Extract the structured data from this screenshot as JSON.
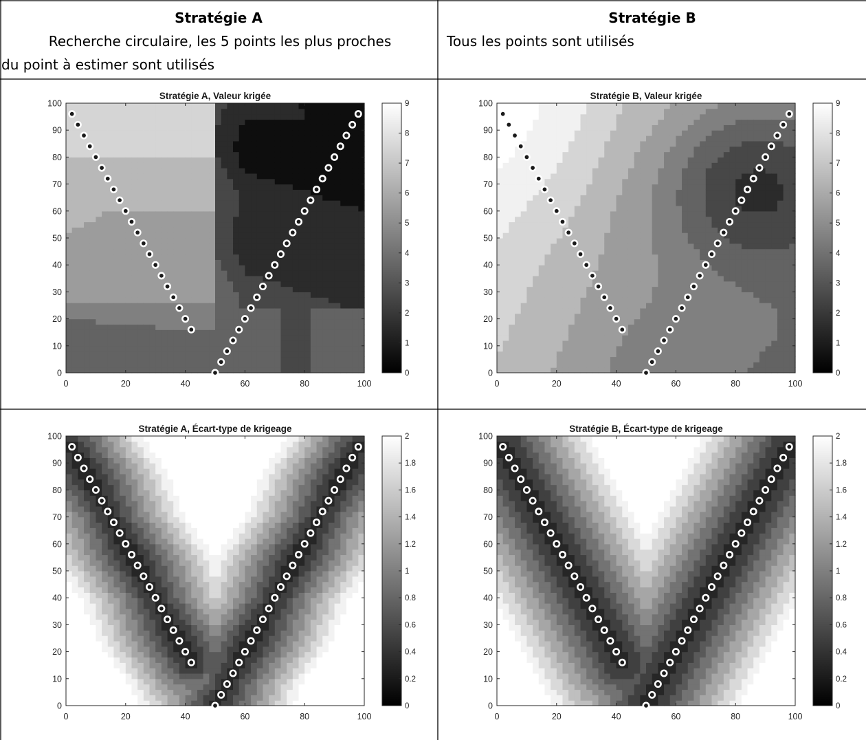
{
  "header": {
    "left": {
      "title": "Stratégie A",
      "desc_line1": "Recherche circulaire, les 5 points les plus proches",
      "desc_line2": "du point à estimer sont utilisés"
    },
    "right": {
      "title": "Stratégie B",
      "desc_line1": "Tous les points sont utilisés"
    }
  },
  "chart_data": [
    {
      "type": "heatmap",
      "title": "Stratégie A, Valeur krigée",
      "xlim": [
        0,
        100
      ],
      "ylim": [
        0,
        100
      ],
      "xticks": [
        0,
        20,
        40,
        60,
        80,
        100
      ],
      "yticks": [
        0,
        10,
        20,
        30,
        40,
        50,
        60,
        70,
        80,
        90,
        100
      ],
      "clim": [
        0,
        9
      ],
      "colorbar_ticks": [
        0,
        1,
        2,
        3,
        4,
        5,
        6,
        7,
        8,
        9
      ],
      "colormap": "gray",
      "search": "nearest-5",
      "sample_points": "V-shaped lines"
    },
    {
      "type": "heatmap",
      "title": "Stratégie B, Valeur krigée",
      "xlim": [
        0,
        100
      ],
      "ylim": [
        0,
        100
      ],
      "xticks": [
        0,
        20,
        40,
        60,
        80,
        100
      ],
      "yticks": [
        0,
        10,
        20,
        30,
        40,
        50,
        60,
        70,
        80,
        90,
        100
      ],
      "clim": [
        0,
        9
      ],
      "colorbar_ticks": [
        0,
        1,
        2,
        3,
        4,
        5,
        6,
        7,
        8,
        9
      ],
      "colormap": "gray",
      "search": "all",
      "sample_points": "V-shaped lines"
    },
    {
      "type": "heatmap",
      "title": "Stratégie A, Écart-type de krigeage",
      "xlim": [
        0,
        100
      ],
      "ylim": [
        0,
        100
      ],
      "xticks": [
        0,
        20,
        40,
        60,
        80,
        100
      ],
      "yticks": [
        0,
        10,
        20,
        30,
        40,
        50,
        60,
        70,
        80,
        90,
        100
      ],
      "clim": [
        0,
        2
      ],
      "colorbar_ticks": [
        0,
        0.2,
        0.4,
        0.6,
        0.8,
        1,
        1.2,
        1.4,
        1.6,
        1.8,
        2
      ],
      "colormap": "gray",
      "search": "nearest-5",
      "sample_points": "V-shaped lines"
    },
    {
      "type": "heatmap",
      "title": "Stratégie B, Écart-type de krigeage",
      "xlim": [
        0,
        100
      ],
      "ylim": [
        0,
        100
      ],
      "xticks": [
        0,
        20,
        40,
        60,
        80,
        100
      ],
      "yticks": [
        0,
        10,
        20,
        30,
        40,
        50,
        60,
        70,
        80,
        90,
        100
      ],
      "clim": [
        0,
        2
      ],
      "colorbar_ticks": [
        0,
        0.2,
        0.4,
        0.6,
        0.8,
        1,
        1.2,
        1.4,
        1.6,
        1.8,
        2
      ],
      "colormap": "gray",
      "search": "all",
      "sample_points": "V-shaped lines"
    }
  ],
  "sample_points": {
    "left_line": {
      "x_start": 2,
      "y_start": 96,
      "x_end": 42,
      "y_end": 16,
      "count": 21
    },
    "right_line": {
      "x_start": 50,
      "y_start": 0,
      "x_end": 98,
      "y_end": 96,
      "count": 25
    }
  }
}
